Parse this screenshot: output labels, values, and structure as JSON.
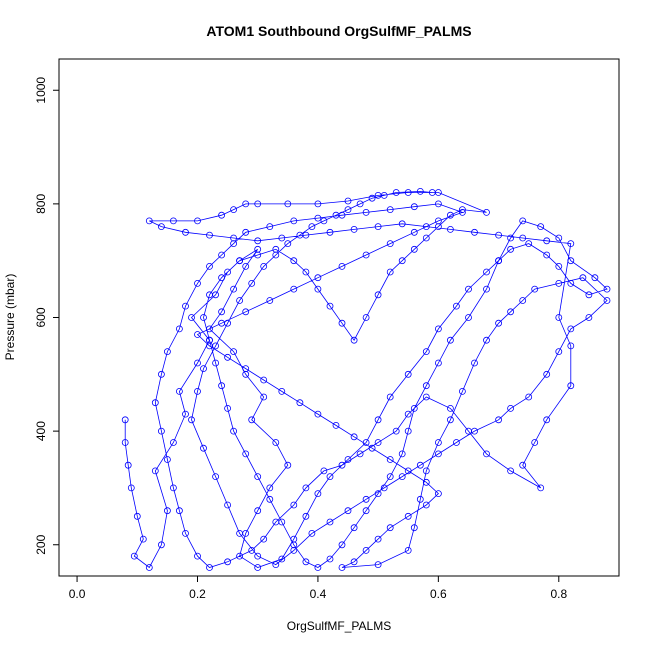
{
  "chart_data": {
    "type": "scatter",
    "title": "ATOM1 Southbound OrgSulfMF_PALMS",
    "xlabel": "OrgSulfMF_PALMS",
    "ylabel": "Pressure (mbar)",
    "xlim": [
      -0.03,
      0.9
    ],
    "ylim": [
      1055,
      145
    ],
    "y_reversed": true,
    "grid": false,
    "legend": "none",
    "x_ticks": [
      0.0,
      0.2,
      0.4,
      0.6,
      0.8
    ],
    "x_tick_labels": [
      "0.0",
      "0.2",
      "0.4",
      "0.6",
      "0.8"
    ],
    "y_ticks": [
      200,
      400,
      600,
      800,
      1000
    ],
    "y_tick_labels": [
      "200",
      "400",
      "600",
      "800",
      "1000"
    ],
    "marker": "open-circle",
    "connected": true,
    "color": "#0000ff",
    "series": [
      {
        "points": [
          [
            0.08,
            420
          ],
          [
            0.08,
            380
          ],
          [
            0.085,
            340
          ],
          [
            0.09,
            300
          ],
          [
            0.1,
            250
          ],
          [
            0.11,
            210
          ],
          [
            0.095,
            180
          ],
          [
            0.12,
            160
          ],
          [
            0.14,
            200
          ],
          [
            0.15,
            260
          ],
          [
            0.13,
            330
          ],
          [
            0.16,
            380
          ],
          [
            0.18,
            430
          ],
          [
            0.17,
            470
          ],
          [
            0.2,
            520
          ],
          [
            0.22,
            560
          ],
          [
            0.19,
            600
          ],
          [
            0.23,
            640
          ],
          [
            0.25,
            680
          ],
          [
            0.27,
            700
          ],
          [
            0.3,
            720
          ],
          [
            0.28,
            690
          ],
          [
            0.26,
            650
          ],
          [
            0.24,
            610
          ],
          [
            0.22,
            580
          ],
          [
            0.26,
            540
          ],
          [
            0.28,
            500
          ],
          [
            0.31,
            460
          ],
          [
            0.29,
            420
          ],
          [
            0.33,
            380
          ],
          [
            0.35,
            340
          ],
          [
            0.32,
            300
          ],
          [
            0.3,
            260
          ],
          [
            0.28,
            220
          ],
          [
            0.27,
            180
          ],
          [
            0.3,
            160
          ],
          [
            0.34,
            175
          ],
          [
            0.36,
            210
          ],
          [
            0.38,
            250
          ],
          [
            0.4,
            290
          ],
          [
            0.42,
            320
          ],
          [
            0.45,
            350
          ],
          [
            0.48,
            380
          ],
          [
            0.5,
            420
          ],
          [
            0.52,
            460
          ],
          [
            0.55,
            500
          ],
          [
            0.58,
            540
          ],
          [
            0.6,
            580
          ],
          [
            0.63,
            620
          ],
          [
            0.65,
            650
          ],
          [
            0.68,
            680
          ],
          [
            0.7,
            700
          ],
          [
            0.72,
            720
          ],
          [
            0.75,
            730
          ],
          [
            0.78,
            710
          ],
          [
            0.8,
            690
          ],
          [
            0.82,
            660
          ],
          [
            0.85,
            640
          ],
          [
            0.88,
            650
          ],
          [
            0.86,
            670
          ],
          [
            0.82,
            700
          ],
          [
            0.8,
            740
          ],
          [
            0.77,
            760
          ],
          [
            0.74,
            770
          ],
          [
            0.72,
            740
          ],
          [
            0.7,
            700
          ],
          [
            0.68,
            650
          ],
          [
            0.65,
            600
          ],
          [
            0.62,
            560
          ],
          [
            0.6,
            520
          ],
          [
            0.58,
            480
          ],
          [
            0.56,
            440
          ],
          [
            0.55,
            400
          ],
          [
            0.54,
            360
          ],
          [
            0.52,
            320
          ],
          [
            0.5,
            290
          ],
          [
            0.48,
            260
          ],
          [
            0.46,
            230
          ],
          [
            0.44,
            200
          ],
          [
            0.42,
            175
          ],
          [
            0.4,
            160
          ],
          [
            0.38,
            170
          ],
          [
            0.36,
            200
          ],
          [
            0.34,
            240
          ],
          [
            0.32,
            280
          ],
          [
            0.3,
            320
          ],
          [
            0.28,
            360
          ],
          [
            0.26,
            400
          ],
          [
            0.25,
            440
          ],
          [
            0.24,
            480
          ],
          [
            0.23,
            520
          ],
          [
            0.22,
            560
          ],
          [
            0.21,
            600
          ],
          [
            0.22,
            640
          ],
          [
            0.24,
            670
          ],
          [
            0.27,
            700
          ],
          [
            0.3,
            710
          ],
          [
            0.33,
            720
          ],
          [
            0.36,
            700
          ],
          [
            0.38,
            680
          ],
          [
            0.4,
            650
          ],
          [
            0.42,
            620
          ],
          [
            0.44,
            590
          ],
          [
            0.46,
            560
          ],
          [
            0.48,
            600
          ],
          [
            0.5,
            640
          ],
          [
            0.52,
            680
          ],
          [
            0.54,
            700
          ],
          [
            0.56,
            720
          ],
          [
            0.58,
            740
          ],
          [
            0.6,
            760
          ],
          [
            0.62,
            780
          ],
          [
            0.64,
            790
          ],
          [
            0.68,
            785
          ],
          [
            0.6,
            820
          ],
          [
            0.55,
            820
          ],
          [
            0.5,
            815
          ],
          [
            0.45,
            805
          ],
          [
            0.4,
            800
          ],
          [
            0.35,
            800
          ],
          [
            0.3,
            800
          ],
          [
            0.28,
            800
          ],
          [
            0.26,
            790
          ],
          [
            0.24,
            780
          ],
          [
            0.2,
            770
          ],
          [
            0.16,
            770
          ],
          [
            0.12,
            770
          ],
          [
            0.14,
            760
          ],
          [
            0.18,
            750
          ],
          [
            0.22,
            745
          ],
          [
            0.26,
            740
          ],
          [
            0.3,
            735
          ],
          [
            0.34,
            740
          ],
          [
            0.38,
            745
          ],
          [
            0.42,
            750
          ],
          [
            0.46,
            755
          ],
          [
            0.5,
            760
          ],
          [
            0.54,
            765
          ],
          [
            0.58,
            760
          ],
          [
            0.62,
            755
          ],
          [
            0.66,
            750
          ],
          [
            0.7,
            745
          ],
          [
            0.74,
            740
          ],
          [
            0.78,
            735
          ],
          [
            0.82,
            730
          ],
          [
            0.8,
            600
          ],
          [
            0.82,
            550
          ],
          [
            0.82,
            480
          ],
          [
            0.78,
            420
          ],
          [
            0.76,
            380
          ],
          [
            0.74,
            340
          ],
          [
            0.77,
            300
          ],
          [
            0.72,
            330
          ],
          [
            0.68,
            360
          ],
          [
            0.65,
            400
          ],
          [
            0.62,
            440
          ],
          [
            0.58,
            460
          ],
          [
            0.55,
            430
          ],
          [
            0.53,
            400
          ],
          [
            0.5,
            380
          ],
          [
            0.47,
            360
          ],
          [
            0.44,
            340
          ],
          [
            0.41,
            330
          ],
          [
            0.38,
            300
          ],
          [
            0.36,
            270
          ],
          [
            0.33,
            240
          ],
          [
            0.31,
            210
          ],
          [
            0.29,
            190
          ],
          [
            0.25,
            170
          ],
          [
            0.22,
            160
          ],
          [
            0.2,
            180
          ],
          [
            0.18,
            220
          ],
          [
            0.17,
            260
          ],
          [
            0.16,
            300
          ],
          [
            0.15,
            350
          ],
          [
            0.14,
            400
          ],
          [
            0.13,
            450
          ],
          [
            0.14,
            500
          ],
          [
            0.15,
            540
          ],
          [
            0.17,
            580
          ],
          [
            0.18,
            620
          ],
          [
            0.2,
            660
          ],
          [
            0.22,
            690
          ],
          [
            0.24,
            710
          ],
          [
            0.26,
            730
          ],
          [
            0.28,
            750
          ],
          [
            0.32,
            760
          ],
          [
            0.36,
            770
          ],
          [
            0.4,
            775
          ],
          [
            0.44,
            780
          ],
          [
            0.48,
            785
          ],
          [
            0.52,
            790
          ],
          [
            0.56,
            795
          ],
          [
            0.6,
            800
          ],
          [
            0.64,
            785
          ],
          [
            0.6,
            770
          ],
          [
            0.56,
            750
          ],
          [
            0.52,
            730
          ],
          [
            0.48,
            710
          ],
          [
            0.44,
            690
          ],
          [
            0.4,
            670
          ],
          [
            0.36,
            650
          ],
          [
            0.32,
            630
          ],
          [
            0.28,
            610
          ],
          [
            0.24,
            590
          ],
          [
            0.2,
            570
          ],
          [
            0.22,
            550
          ],
          [
            0.25,
            530
          ],
          [
            0.28,
            510
          ],
          [
            0.31,
            490
          ],
          [
            0.34,
            470
          ],
          [
            0.37,
            450
          ],
          [
            0.4,
            430
          ],
          [
            0.43,
            410
          ],
          [
            0.46,
            390
          ],
          [
            0.49,
            370
          ],
          [
            0.52,
            350
          ],
          [
            0.55,
            330
          ],
          [
            0.58,
            310
          ],
          [
            0.6,
            290
          ],
          [
            0.58,
            270
          ],
          [
            0.55,
            250
          ],
          [
            0.52,
            230
          ],
          [
            0.5,
            210
          ],
          [
            0.48,
            190
          ],
          [
            0.46,
            170
          ],
          [
            0.44,
            160
          ],
          [
            0.5,
            165
          ],
          [
            0.55,
            190
          ],
          [
            0.56,
            230
          ],
          [
            0.57,
            280
          ],
          [
            0.58,
            330
          ],
          [
            0.6,
            380
          ],
          [
            0.62,
            420
          ],
          [
            0.64,
            470
          ],
          [
            0.66,
            520
          ],
          [
            0.68,
            560
          ],
          [
            0.7,
            590
          ],
          [
            0.72,
            610
          ],
          [
            0.74,
            630
          ],
          [
            0.76,
            650
          ],
          [
            0.8,
            660
          ],
          [
            0.84,
            670
          ],
          [
            0.88,
            630
          ],
          [
            0.85,
            600
          ],
          [
            0.82,
            580
          ],
          [
            0.8,
            540
          ],
          [
            0.78,
            500
          ],
          [
            0.75,
            460
          ],
          [
            0.72,
            440
          ],
          [
            0.7,
            420
          ],
          [
            0.66,
            400
          ],
          [
            0.63,
            380
          ],
          [
            0.6,
            360
          ],
          [
            0.57,
            340
          ],
          [
            0.54,
            320
          ],
          [
            0.51,
            300
          ],
          [
            0.48,
            280
          ],
          [
            0.45,
            260
          ],
          [
            0.42,
            240
          ],
          [
            0.39,
            220
          ],
          [
            0.36,
            190
          ],
          [
            0.33,
            165
          ],
          [
            0.3,
            180
          ],
          [
            0.27,
            220
          ],
          [
            0.25,
            270
          ],
          [
            0.23,
            320
          ],
          [
            0.21,
            370
          ],
          [
            0.19,
            420
          ],
          [
            0.2,
            470
          ],
          [
            0.21,
            510
          ],
          [
            0.23,
            550
          ],
          [
            0.25,
            590
          ],
          [
            0.27,
            630
          ],
          [
            0.29,
            660
          ],
          [
            0.31,
            690
          ],
          [
            0.33,
            710
          ],
          [
            0.35,
            730
          ],
          [
            0.37,
            745
          ],
          [
            0.39,
            760
          ],
          [
            0.41,
            770
          ],
          [
            0.43,
            780
          ],
          [
            0.45,
            790
          ],
          [
            0.47,
            800
          ],
          [
            0.49,
            810
          ],
          [
            0.51,
            815
          ],
          [
            0.53,
            820
          ],
          [
            0.57,
            822
          ],
          [
            0.59,
            820
          ]
        ]
      }
    ]
  }
}
